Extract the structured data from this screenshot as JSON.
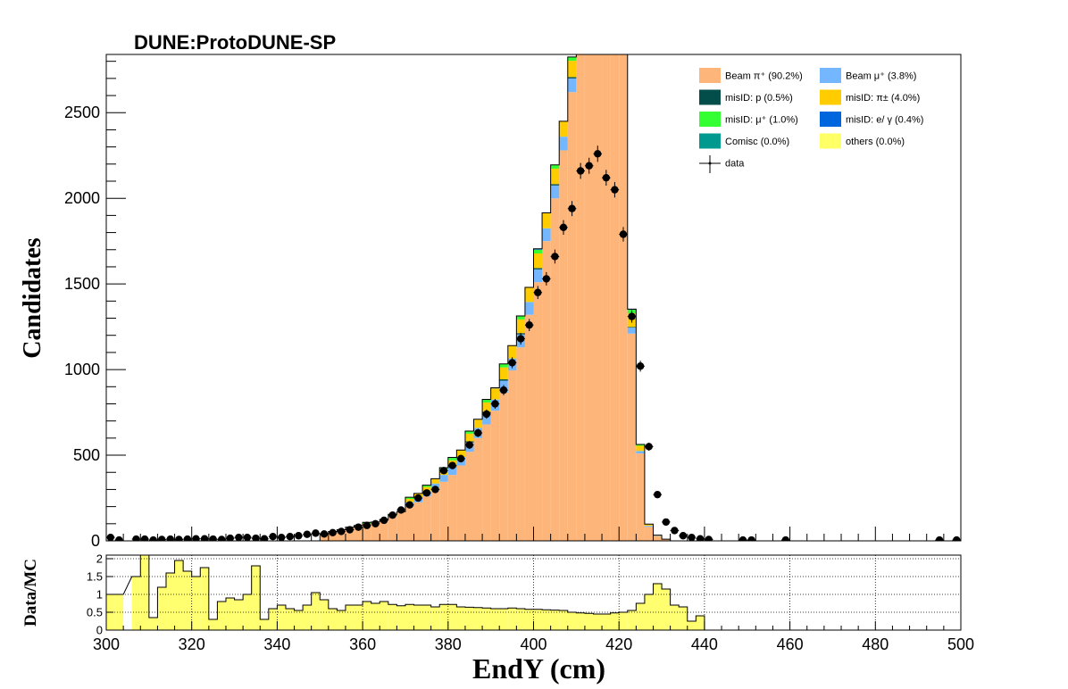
{
  "chart_data": {
    "type": "bar",
    "title": "DUNE:ProtoDUNE-SP",
    "xlabel": "EndY (cm)",
    "ylabel": "Candidates",
    "xlim": [
      300,
      500
    ],
    "ylim": [
      0,
      2840
    ],
    "x_ticks": [
      300,
      320,
      340,
      360,
      380,
      400,
      420,
      440,
      460,
      480,
      500
    ],
    "y_ticks": [
      0,
      500,
      1000,
      1500,
      2000,
      2500
    ],
    "bin_width": 2,
    "legend_position": "top-right",
    "series": [
      {
        "name": "Beam  π⁺ (90.2%)",
        "color": "#fdb57a",
        "bins": [
          [
            350,
            42
          ],
          [
            352,
            55
          ],
          [
            354,
            65
          ],
          [
            356,
            80
          ],
          [
            358,
            90
          ],
          [
            360,
            100
          ],
          [
            362,
            110
          ],
          [
            364,
            125
          ],
          [
            366,
            145
          ],
          [
            368,
            170
          ],
          [
            370,
            200
          ],
          [
            372,
            225
          ],
          [
            374,
            260
          ],
          [
            376,
            300
          ],
          [
            378,
            345
          ],
          [
            380,
            385
          ],
          [
            382,
            440
          ],
          [
            384,
            520
          ],
          [
            386,
            600
          ],
          [
            388,
            680
          ],
          [
            390,
            760
          ],
          [
            392,
            865
          ],
          [
            394,
            995
          ],
          [
            396,
            1130
          ],
          [
            398,
            1320
          ],
          [
            400,
            1510
          ],
          [
            402,
            1750
          ],
          [
            404,
            2000
          ],
          [
            406,
            2280
          ],
          [
            408,
            2620
          ],
          [
            410,
            2950
          ],
          [
            412,
            3400
          ],
          [
            414,
            3500
          ],
          [
            416,
            3700
          ],
          [
            418,
            3800
          ],
          [
            420,
            3100
          ],
          [
            422,
            1210
          ],
          [
            424,
            510
          ],
          [
            426,
            82
          ],
          [
            428,
            28
          ],
          [
            430,
            10
          ]
        ]
      },
      {
        "name": "Beam  μ⁺ (3.8%)",
        "color": "#74b7ff",
        "bins": [
          [
            370,
            25
          ],
          [
            372,
            30
          ],
          [
            374,
            30
          ],
          [
            376,
            35
          ],
          [
            378,
            40
          ],
          [
            380,
            45
          ],
          [
            382,
            50
          ],
          [
            384,
            55
          ],
          [
            386,
            60
          ],
          [
            388,
            65
          ],
          [
            390,
            65
          ],
          [
            392,
            70
          ],
          [
            394,
            70
          ],
          [
            396,
            75
          ],
          [
            398,
            75
          ],
          [
            400,
            75
          ],
          [
            402,
            75
          ],
          [
            404,
            75
          ],
          [
            406,
            80
          ],
          [
            408,
            80
          ],
          [
            410,
            80
          ],
          [
            412,
            80
          ],
          [
            414,
            80
          ],
          [
            416,
            80
          ],
          [
            418,
            80
          ],
          [
            420,
            80
          ],
          [
            422,
            35
          ],
          [
            424,
            15
          ],
          [
            426,
            6
          ],
          [
            428,
            2
          ]
        ]
      },
      {
        "name": "misID: p (0.5%)",
        "color": "#034d4a",
        "bins": [
          [
            380,
            5
          ],
          [
            384,
            6
          ],
          [
            388,
            8
          ],
          [
            392,
            8
          ],
          [
            396,
            8
          ],
          [
            400,
            8
          ],
          [
            404,
            8
          ],
          [
            408,
            8
          ],
          [
            412,
            8
          ],
          [
            416,
            8
          ],
          [
            420,
            8
          ],
          [
            422,
            4
          ]
        ]
      },
      {
        "name": "misID: π± (4.0%)",
        "color": "#ffcc00",
        "bins": [
          [
            370,
            20
          ],
          [
            372,
            22
          ],
          [
            374,
            25
          ],
          [
            376,
            28
          ],
          [
            378,
            30
          ],
          [
            380,
            35
          ],
          [
            382,
            40
          ],
          [
            384,
            45
          ],
          [
            386,
            50
          ],
          [
            388,
            55
          ],
          [
            390,
            65
          ],
          [
            392,
            70
          ],
          [
            394,
            75
          ],
          [
            396,
            80
          ],
          [
            398,
            85
          ],
          [
            400,
            85
          ],
          [
            402,
            90
          ],
          [
            404,
            90
          ],
          [
            406,
            90
          ],
          [
            408,
            95
          ],
          [
            410,
            95
          ],
          [
            412,
            95
          ],
          [
            414,
            95
          ],
          [
            416,
            95
          ],
          [
            418,
            95
          ],
          [
            420,
            95
          ],
          [
            422,
            80
          ],
          [
            424,
            30
          ],
          [
            426,
            10
          ],
          [
            428,
            3
          ]
        ]
      },
      {
        "name": "misID: μ⁺ (1.0%)",
        "color": "#33ff33",
        "bins": [
          [
            360,
            8
          ],
          [
            366,
            10
          ],
          [
            370,
            10
          ],
          [
            374,
            10
          ],
          [
            378,
            12
          ],
          [
            380,
            14
          ],
          [
            384,
            15
          ],
          [
            388,
            18
          ],
          [
            392,
            20
          ],
          [
            396,
            20
          ],
          [
            400,
            22
          ],
          [
            404,
            22
          ],
          [
            408,
            22
          ],
          [
            412,
            22
          ],
          [
            416,
            22
          ],
          [
            420,
            22
          ],
          [
            422,
            20
          ],
          [
            424,
            8
          ]
        ]
      },
      {
        "name": "misID: e/ γ (0.4%)",
        "color": "#0066dd",
        "bins": [
          [
            380,
            3
          ],
          [
            390,
            4
          ],
          [
            400,
            5
          ],
          [
            410,
            5
          ],
          [
            420,
            5
          ],
          [
            422,
            4
          ]
        ]
      },
      {
        "name": "Comisc (0.0%)",
        "color": "#00998f",
        "bins": []
      },
      {
        "name": "others (0.0%)",
        "color": "#ffff66",
        "bins": []
      }
    ],
    "data_points": {
      "name": "data",
      "points": [
        [
          301,
          20
        ],
        [
          303,
          5
        ],
        [
          307,
          10
        ],
        [
          309,
          10
        ],
        [
          311,
          5
        ],
        [
          313,
          8
        ],
        [
          315,
          10
        ],
        [
          317,
          8
        ],
        [
          319,
          10
        ],
        [
          321,
          12
        ],
        [
          323,
          12
        ],
        [
          325,
          10
        ],
        [
          327,
          8
        ],
        [
          329,
          15
        ],
        [
          331,
          20
        ],
        [
          333,
          20
        ],
        [
          335,
          15
        ],
        [
          337,
          12
        ],
        [
          339,
          25
        ],
        [
          341,
          20
        ],
        [
          343,
          25
        ],
        [
          345,
          30
        ],
        [
          347,
          38
        ],
        [
          349,
          45
        ],
        [
          351,
          40
        ],
        [
          353,
          48
        ],
        [
          355,
          55
        ],
        [
          357,
          65
        ],
        [
          359,
          80
        ],
        [
          361,
          90
        ],
        [
          363,
          100
        ],
        [
          365,
          120
        ],
        [
          367,
          150
        ],
        [
          369,
          180
        ],
        [
          371,
          210
        ],
        [
          373,
          250
        ],
        [
          375,
          280
        ],
        [
          377,
          300
        ],
        [
          379,
          410
        ],
        [
          381,
          440
        ],
        [
          383,
          480
        ],
        [
          385,
          560
        ],
        [
          387,
          630
        ],
        [
          389,
          740
        ],
        [
          391,
          800
        ],
        [
          393,
          880
        ],
        [
          395,
          1040
        ],
        [
          397,
          1180
        ],
        [
          399,
          1260
        ],
        [
          401,
          1450
        ],
        [
          403,
          1530
        ],
        [
          405,
          1660
        ],
        [
          407,
          1830
        ],
        [
          409,
          1940
        ],
        [
          411,
          2160
        ],
        [
          413,
          2190
        ],
        [
          415,
          2260
        ],
        [
          417,
          2120
        ],
        [
          419,
          2050
        ],
        [
          421,
          1790
        ],
        [
          423,
          1310
        ],
        [
          425,
          1020
        ],
        [
          427,
          550
        ],
        [
          429,
          270
        ],
        [
          431,
          110
        ],
        [
          433,
          60
        ],
        [
          435,
          30
        ],
        [
          437,
          20
        ],
        [
          439,
          12
        ],
        [
          441,
          8
        ],
        [
          449,
          5
        ],
        [
          451,
          5
        ],
        [
          459,
          5
        ],
        [
          495,
          5
        ],
        [
          499,
          5
        ]
      ]
    },
    "ratio_panel": {
      "ylabel": "Data/MC",
      "ylim": [
        0,
        2.1
      ],
      "y_ticks": [
        "0",
        "0.5",
        "1",
        "1.5",
        "2"
      ],
      "grid": true,
      "bins": [
        [
          300,
          1.0
        ],
        [
          302,
          1.0
        ],
        [
          306,
          1.5
        ],
        [
          308,
          2.1
        ],
        [
          310,
          0.35
        ],
        [
          312,
          1.2
        ],
        [
          314,
          1.6
        ],
        [
          316,
          1.95
        ],
        [
          318,
          1.65
        ],
        [
          320,
          1.5
        ],
        [
          322,
          1.75
        ],
        [
          324,
          0.3
        ],
        [
          326,
          0.8
        ],
        [
          328,
          0.9
        ],
        [
          330,
          0.85
        ],
        [
          332,
          1.0
        ],
        [
          334,
          1.8
        ],
        [
          336,
          0.3
        ],
        [
          338,
          0.6
        ],
        [
          340,
          0.7
        ],
        [
          342,
          0.6
        ],
        [
          344,
          0.55
        ],
        [
          346,
          0.7
        ],
        [
          348,
          1.05
        ],
        [
          350,
          0.85
        ],
        [
          352,
          0.6
        ],
        [
          354,
          0.55
        ],
        [
          356,
          0.7
        ],
        [
          358,
          0.7
        ],
        [
          360,
          0.8
        ],
        [
          362,
          0.75
        ],
        [
          364,
          0.8
        ],
        [
          366,
          0.72
        ],
        [
          368,
          0.68
        ],
        [
          370,
          0.72
        ],
        [
          372,
          0.7
        ],
        [
          374,
          0.7
        ],
        [
          376,
          0.65
        ],
        [
          378,
          0.72
        ],
        [
          380,
          0.72
        ],
        [
          382,
          0.65
        ],
        [
          384,
          0.64
        ],
        [
          386,
          0.63
        ],
        [
          388,
          0.62
        ],
        [
          390,
          0.6
        ],
        [
          392,
          0.6
        ],
        [
          394,
          0.62
        ],
        [
          396,
          0.6
        ],
        [
          398,
          0.58
        ],
        [
          400,
          0.58
        ],
        [
          402,
          0.57
        ],
        [
          404,
          0.56
        ],
        [
          406,
          0.55
        ],
        [
          408,
          0.5
        ],
        [
          410,
          0.48
        ],
        [
          412,
          0.47
        ],
        [
          414,
          0.45
        ],
        [
          416,
          0.45
        ],
        [
          418,
          0.48
        ],
        [
          420,
          0.5
        ],
        [
          422,
          0.55
        ],
        [
          424,
          0.75
        ],
        [
          426,
          1.0
        ],
        [
          428,
          1.3
        ],
        [
          430,
          1.15
        ],
        [
          432,
          0.7
        ],
        [
          434,
          0.65
        ],
        [
          436,
          0.25
        ],
        [
          438,
          0.4
        ],
        [
          440,
          0
        ]
      ]
    }
  }
}
